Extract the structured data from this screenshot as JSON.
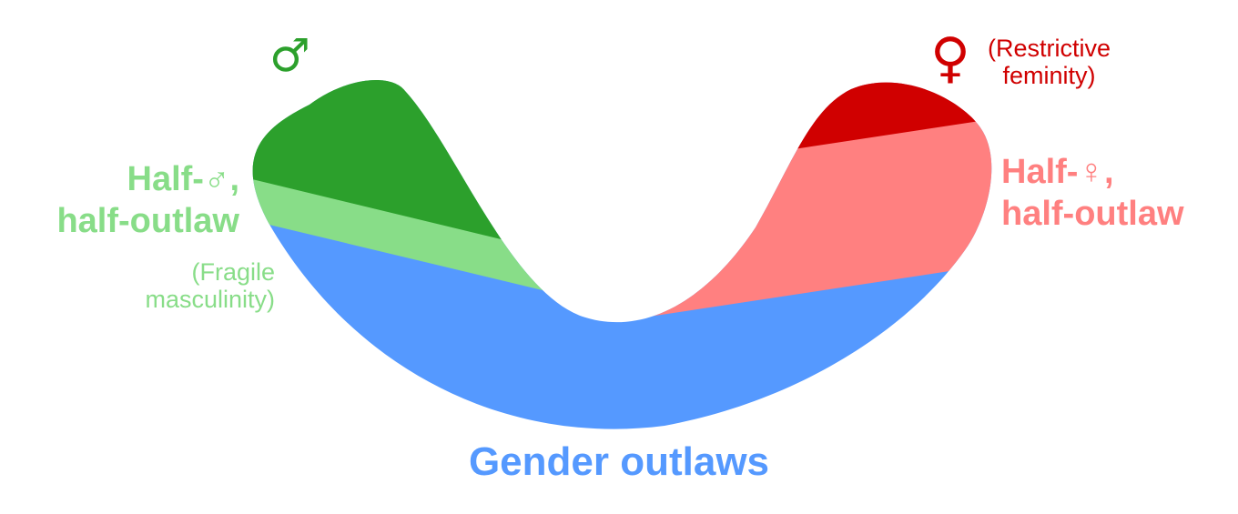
{
  "colors": {
    "male": "#2ca02c",
    "half_male": "#88dd88",
    "female": "#d00000",
    "half_female": "#ff8080",
    "outlaws": "#5599ff"
  },
  "labels": {
    "male_symbol": "♂",
    "female_symbol": "♀",
    "restrictive_line1": "(Restrictive",
    "restrictive_line2": "feminity)",
    "half_male_line1": "Half-♂,",
    "half_male_line2": "half-outlaw",
    "fragile_line1": "(Fragile",
    "fragile_line2": "masculinity)",
    "half_female_line1": "Half-♀,",
    "half_female_line2": "half-outlaw",
    "outlaws": "Gender outlaws"
  }
}
